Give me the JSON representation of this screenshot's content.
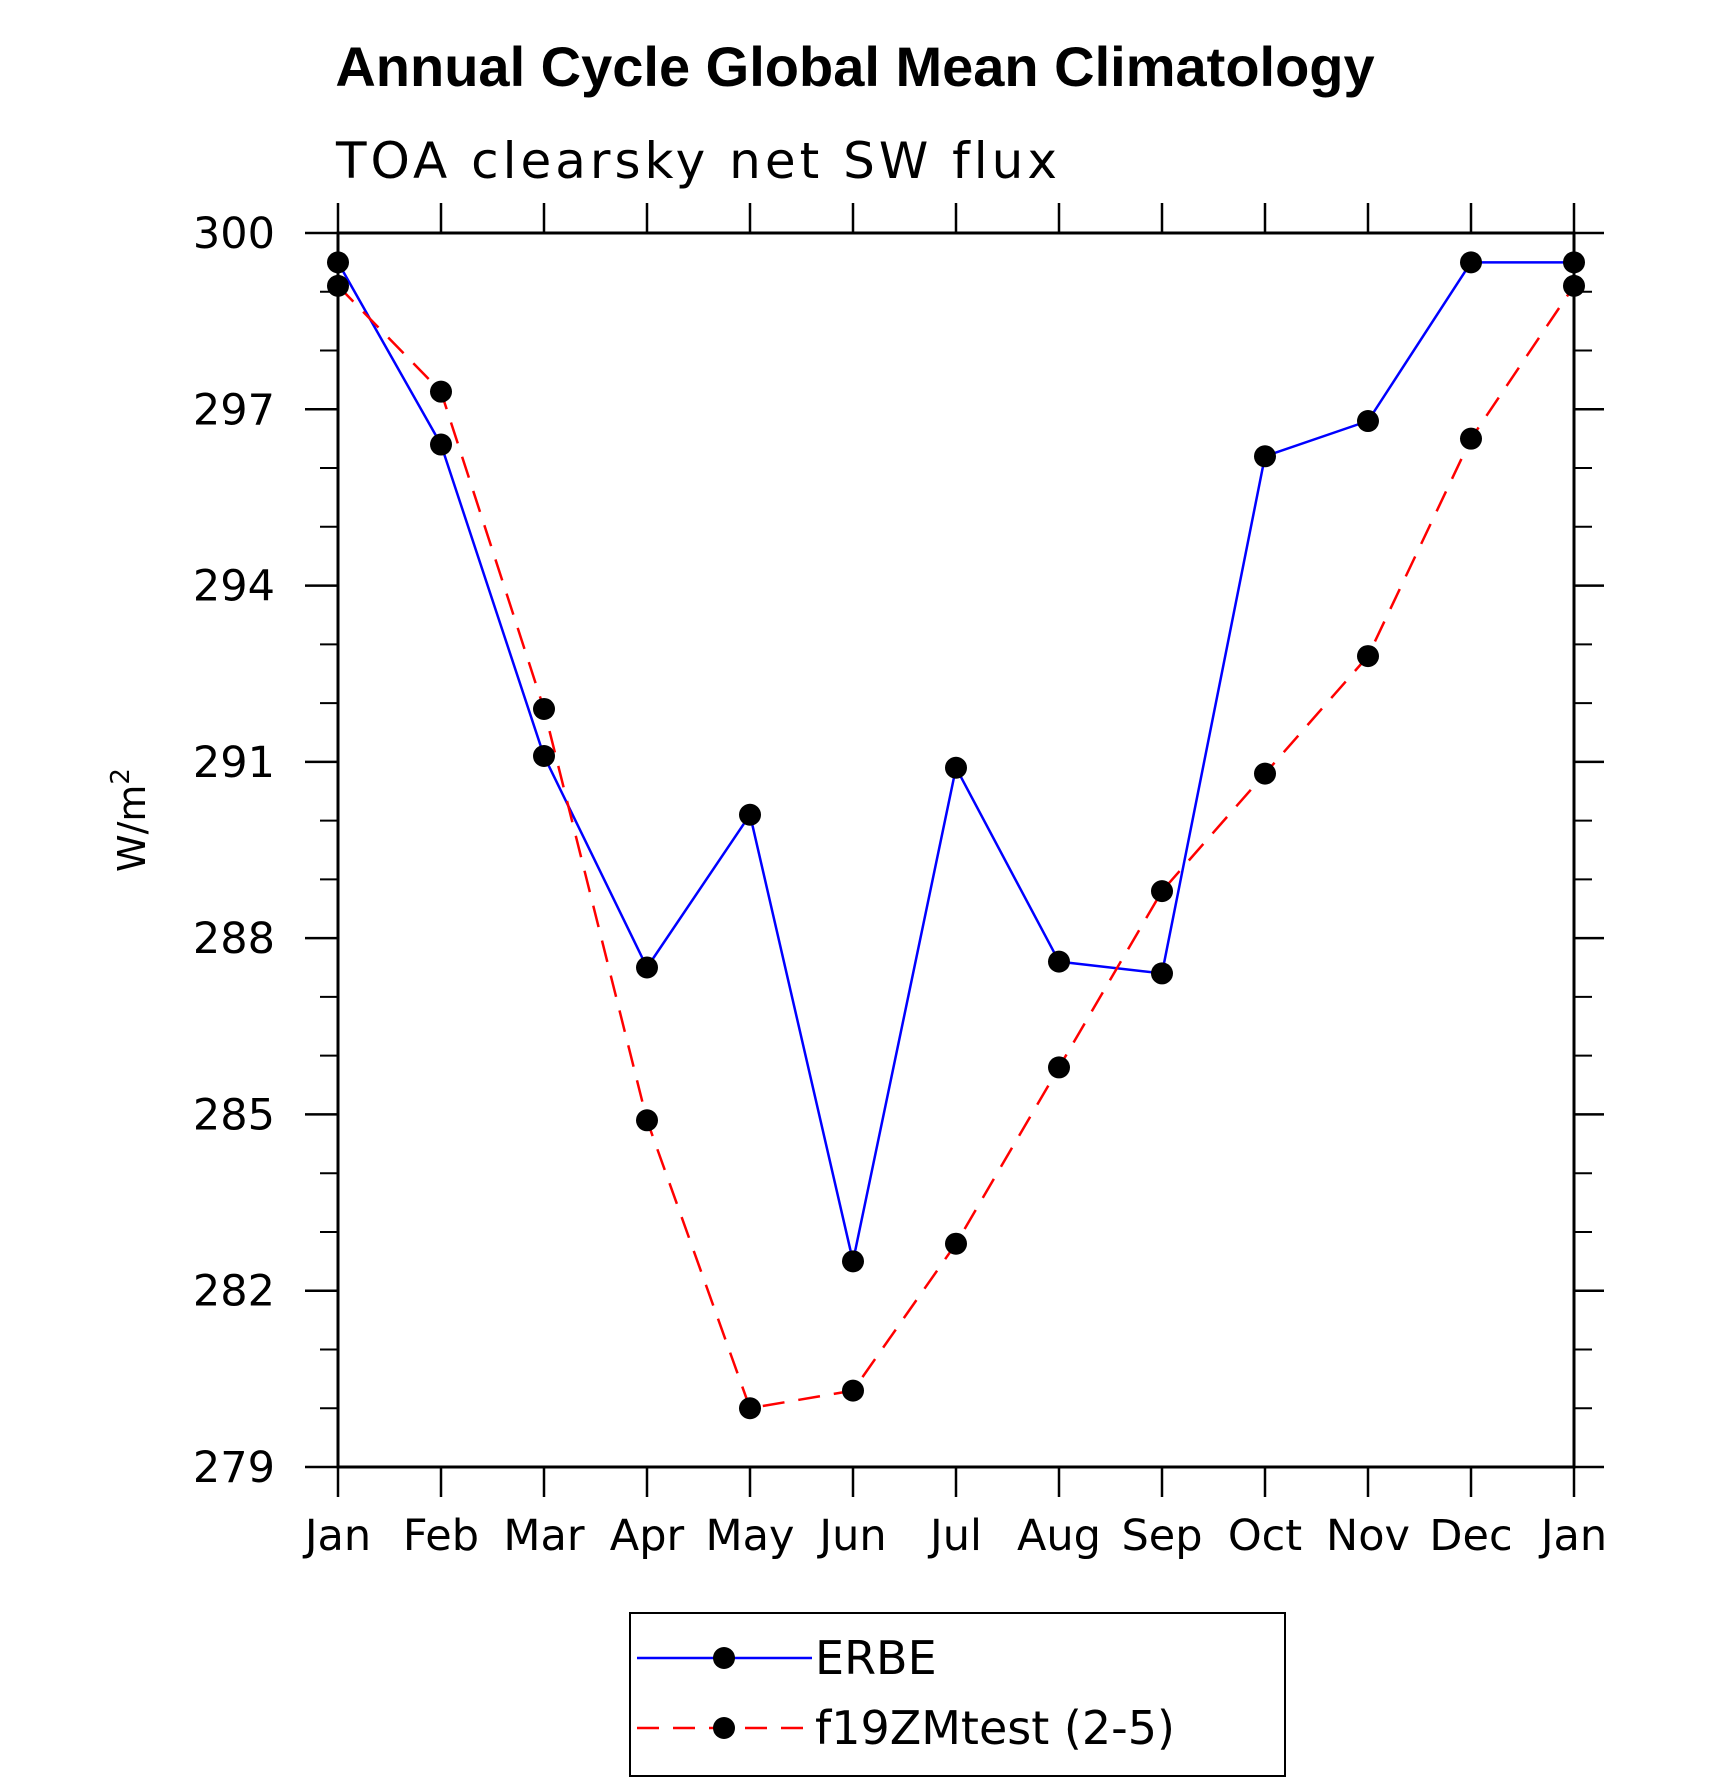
{
  "chart_data": {
    "type": "line",
    "title": "Annual Cycle Global Mean Climatology",
    "subtitle": "TOA clearsky net SW flux",
    "ylabel": "W/m",
    "ylabel_superscript": "2",
    "xlabel": "",
    "categories": [
      "Jan",
      "Feb",
      "Mar",
      "Apr",
      "May",
      "Jun",
      "Jul",
      "Aug",
      "Sep",
      "Oct",
      "Nov",
      "Dec",
      "Jan"
    ],
    "ylim": [
      279,
      300
    ],
    "yticks": [
      "279",
      "282",
      "285",
      "288",
      "291",
      "294",
      "297",
      "300"
    ],
    "grid": false,
    "legend_position": "bottom",
    "series": [
      {
        "name": "ERBE",
        "color": "#0000ff",
        "line_style": "solid",
        "marker": "filled-circle",
        "values": [
          299.5,
          296.4,
          291.1,
          287.5,
          290.1,
          282.5,
          290.9,
          287.6,
          287.4,
          296.2,
          296.8,
          299.5,
          299.5
        ]
      },
      {
        "name": "f19ZMtest (2-5)",
        "color": "#ff0000",
        "line_style": "dashed",
        "marker": "filled-circle",
        "values": [
          299.1,
          297.3,
          291.9,
          284.9,
          280.0,
          280.3,
          282.8,
          285.8,
          288.8,
          290.8,
          292.8,
          296.5,
          299.1
        ]
      }
    ]
  }
}
